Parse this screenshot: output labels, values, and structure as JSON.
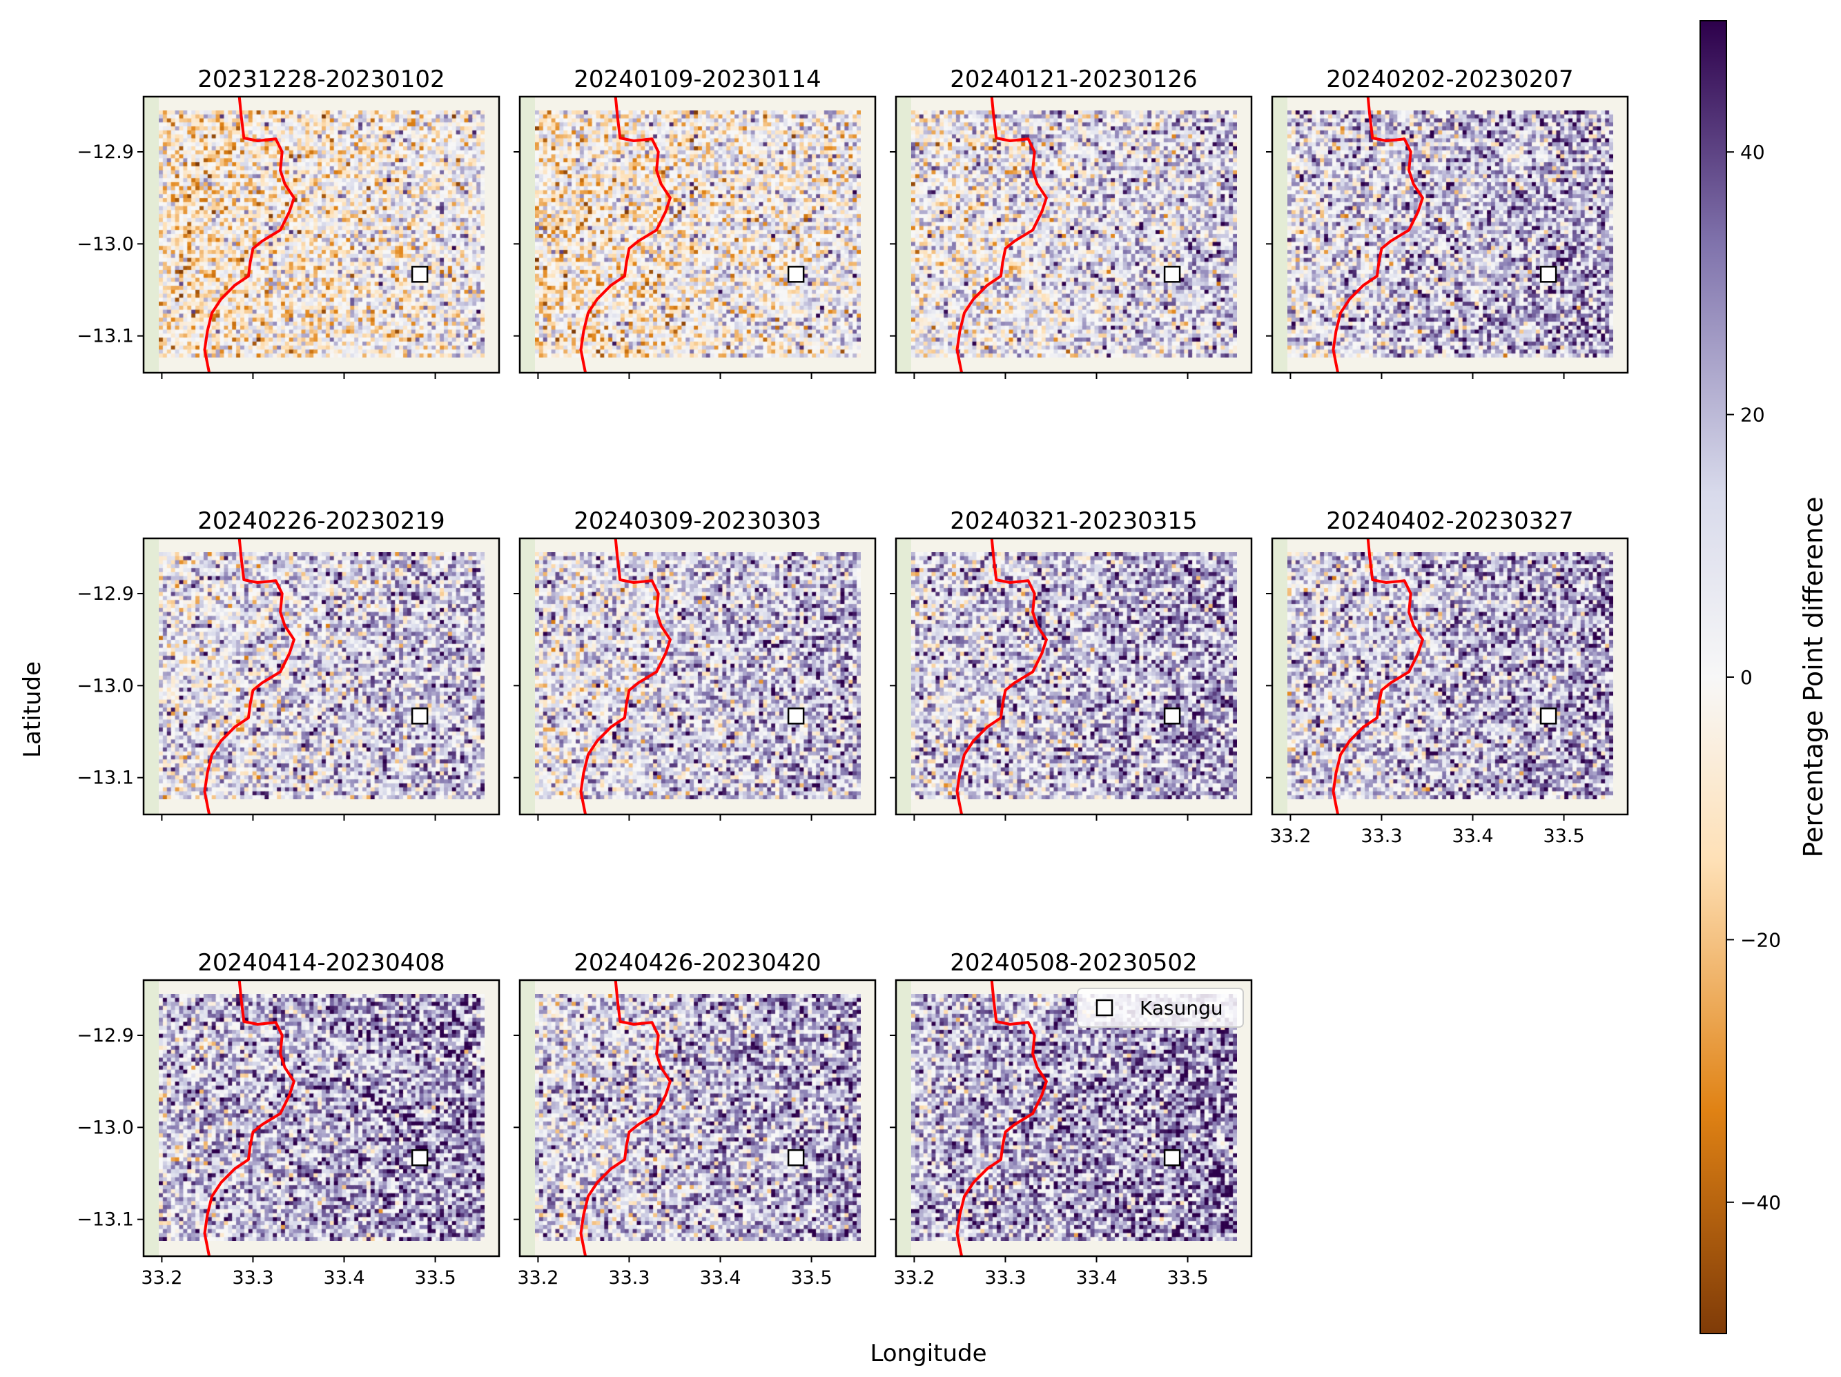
{
  "chart_data": {
    "type": "heatmap",
    "xlabel": "Longitude",
    "ylabel": "Latitude",
    "colorbar_label": "Percentage Point difference",
    "colorbar_range": [
      -50,
      50
    ],
    "colorbar_ticks": [
      40,
      20,
      0,
      -20,
      -40
    ],
    "colorbar_tick_labels": [
      "40",
      "20",
      "0",
      "−20",
      "−40"
    ],
    "colormap": [
      "#7f3b08",
      "#e08214",
      "#fee0b6",
      "#f7f7f7",
      "#d8daeb",
      "#8073ac",
      "#2d004b"
    ],
    "xlim": [
      33.18,
      33.57
    ],
    "ylim": [
      -13.14,
      -12.84
    ],
    "xticks": [
      33.2,
      33.3,
      33.4,
      33.5
    ],
    "xtick_labels": [
      "33.2",
      "33.3",
      "33.4",
      "33.5"
    ],
    "yticks": [
      -12.9,
      -13.0,
      -13.1
    ],
    "ytick_labels": [
      "−12.9",
      "−13.0",
      "−13.1"
    ],
    "marker": {
      "name": "Kasungu",
      "lon": 33.483,
      "lat": -13.033
    },
    "legend": {
      "label": "Kasungu",
      "location": "upper right"
    },
    "boundary_color": "#ff0000",
    "boundary_line": [
      [
        33.285,
        -12.84
      ],
      [
        33.287,
        -12.86
      ],
      [
        33.29,
        -12.885
      ],
      [
        33.305,
        -12.888
      ],
      [
        33.325,
        -12.886
      ],
      [
        33.332,
        -12.9
      ],
      [
        33.33,
        -12.92
      ],
      [
        33.335,
        -12.935
      ],
      [
        33.345,
        -12.95
      ],
      [
        33.34,
        -12.965
      ],
      [
        33.33,
        -12.985
      ],
      [
        33.31,
        -12.997
      ],
      [
        33.3,
        -13.005
      ],
      [
        33.297,
        -13.02
      ],
      [
        33.295,
        -13.035
      ],
      [
        33.28,
        -13.045
      ],
      [
        33.265,
        -13.06
      ],
      [
        33.255,
        -13.075
      ],
      [
        33.25,
        -13.095
      ],
      [
        33.247,
        -13.115
      ],
      [
        33.25,
        -13.13
      ],
      [
        33.252,
        -13.14
      ]
    ],
    "panels": [
      {
        "title": "20231228-20230102",
        "mean": -4
      },
      {
        "title": "20240109-20230114",
        "mean": -2
      },
      {
        "title": "20240121-20230126",
        "mean": 8
      },
      {
        "title": "20240202-20230207",
        "mean": 16
      },
      {
        "title": "20240226-20230219",
        "mean": 12
      },
      {
        "title": "20240309-20230303",
        "mean": 14
      },
      {
        "title": "20240321-20230315",
        "mean": 18
      },
      {
        "title": "20240402-20230327",
        "mean": 18
      },
      {
        "title": "20240414-20230408",
        "mean": 22
      },
      {
        "title": "20240426-20230420",
        "mean": 18
      },
      {
        "title": "20240508-20230502",
        "mean": 24
      }
    ]
  }
}
